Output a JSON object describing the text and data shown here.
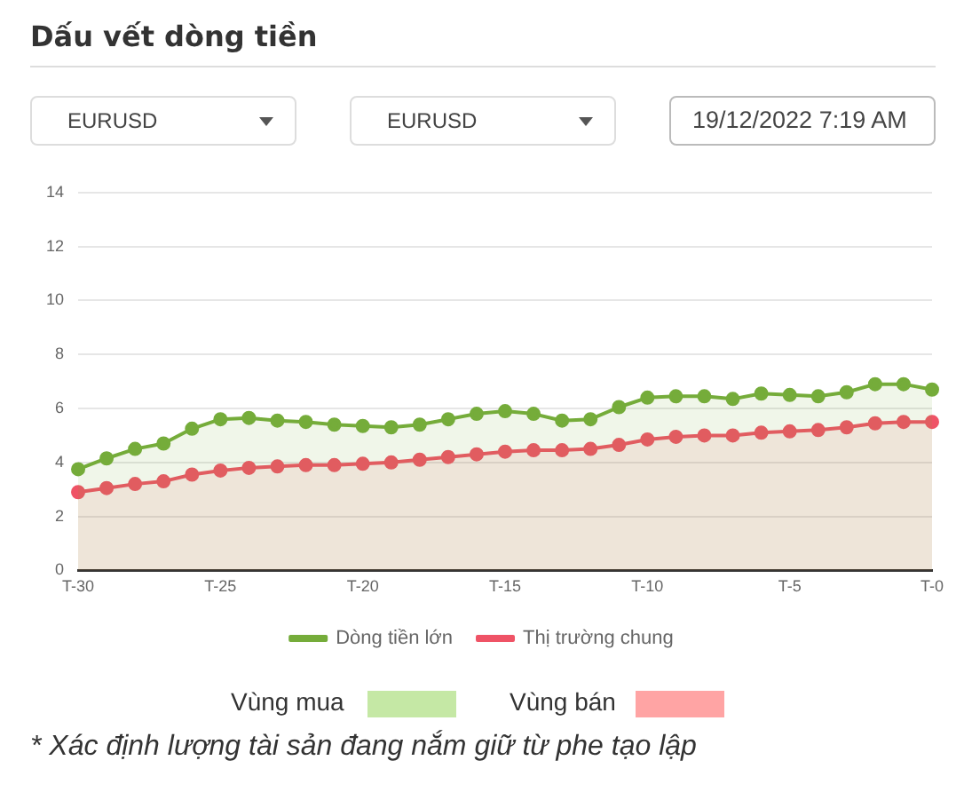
{
  "chart_data": {
    "type": "area",
    "title": "Dấu vết dòng tiền",
    "categories": [
      "T-30",
      null,
      null,
      null,
      null,
      "T-25",
      null,
      null,
      null,
      null,
      "T-20",
      null,
      null,
      null,
      null,
      "T-15",
      null,
      null,
      null,
      null,
      "T-10",
      null,
      null,
      null,
      null,
      "T-5",
      null,
      null,
      null,
      null,
      "T-0"
    ],
    "series": [
      {
        "name": "Dòng tiền lớn",
        "color": "#75ac3a",
        "values": [
          3.75,
          4.15,
          4.5,
          4.7,
          5.25,
          5.6,
          5.65,
          5.55,
          5.5,
          5.4,
          5.35,
          5.3,
          5.4,
          5.6,
          5.8,
          5.9,
          5.8,
          5.55,
          5.6,
          6.05,
          6.4,
          6.45,
          6.45,
          6.35,
          6.55,
          6.5,
          6.45,
          6.6,
          6.9,
          6.9,
          6.7
        ]
      },
      {
        "name": "Thị trường chung",
        "color": "#ef5366",
        "values": [
          2.9,
          3.05,
          3.2,
          3.3,
          3.55,
          3.7,
          3.8,
          3.85,
          3.9,
          3.9,
          3.95,
          4.0,
          4.1,
          4.2,
          4.3,
          4.4,
          4.45,
          4.45,
          4.5,
          4.65,
          4.85,
          4.95,
          5.0,
          5.0,
          5.1,
          5.15,
          5.2,
          5.3,
          5.45,
          5.5,
          5.5
        ]
      }
    ],
    "ylim": [
      0,
      14
    ],
    "yticks": [
      0,
      2,
      4,
      6,
      8,
      10,
      12,
      14
    ],
    "grid": "y",
    "legend": "bottom",
    "marker": "circle",
    "line_style": "solid",
    "annotations": [
      "EURUSD",
      "EURUSD",
      "19/12/2022 7:19 AM",
      "Vùng mua",
      "Vùng bán",
      "* Xác định lượng tài sản đang nắm giữ từ phe tạo lập"
    ]
  }
}
